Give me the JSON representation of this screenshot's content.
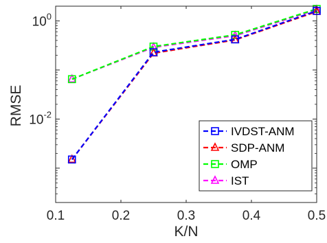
{
  "chart_data": {
    "type": "line",
    "xlabel": "K/N",
    "ylabel": "RMSE",
    "xlim": [
      0.1,
      0.5
    ],
    "ylim_log10": [
      -3.7,
      0.3
    ],
    "y_scale": "log",
    "grid": false,
    "legend_position": "bottom-right",
    "x_ticks": [
      {
        "value": 0.1,
        "label": "0.1"
      },
      {
        "value": 0.2,
        "label": "0.2"
      },
      {
        "value": 0.3,
        "label": "0.3"
      },
      {
        "value": 0.4,
        "label": "0.4"
      },
      {
        "value": 0.5,
        "label": "0.5"
      }
    ],
    "y_ticks": [
      {
        "value": 0.01,
        "base": "10",
        "exp": "-2"
      },
      {
        "value": 1,
        "base": "10",
        "exp": "0"
      }
    ],
    "x": [
      0.125,
      0.25,
      0.375,
      0.5
    ],
    "series": [
      {
        "name": "IVDST-ANM",
        "color": "#0000ff",
        "marker": "square",
        "values": [
          0.0015,
          0.23,
          0.42,
          1.6
        ]
      },
      {
        "name": "SDP-ANM",
        "color": "#ff0000",
        "marker": "triangle",
        "values": [
          0.0015,
          0.22,
          0.41,
          1.55
        ]
      },
      {
        "name": "OMP",
        "color": "#00ff00",
        "marker": "square",
        "values": [
          0.065,
          0.3,
          0.52,
          1.75
        ]
      },
      {
        "name": "IST",
        "color": "#ff00ff",
        "marker": "triangle",
        "values": [
          0.065,
          0.29,
          0.5,
          1.7
        ]
      }
    ]
  }
}
